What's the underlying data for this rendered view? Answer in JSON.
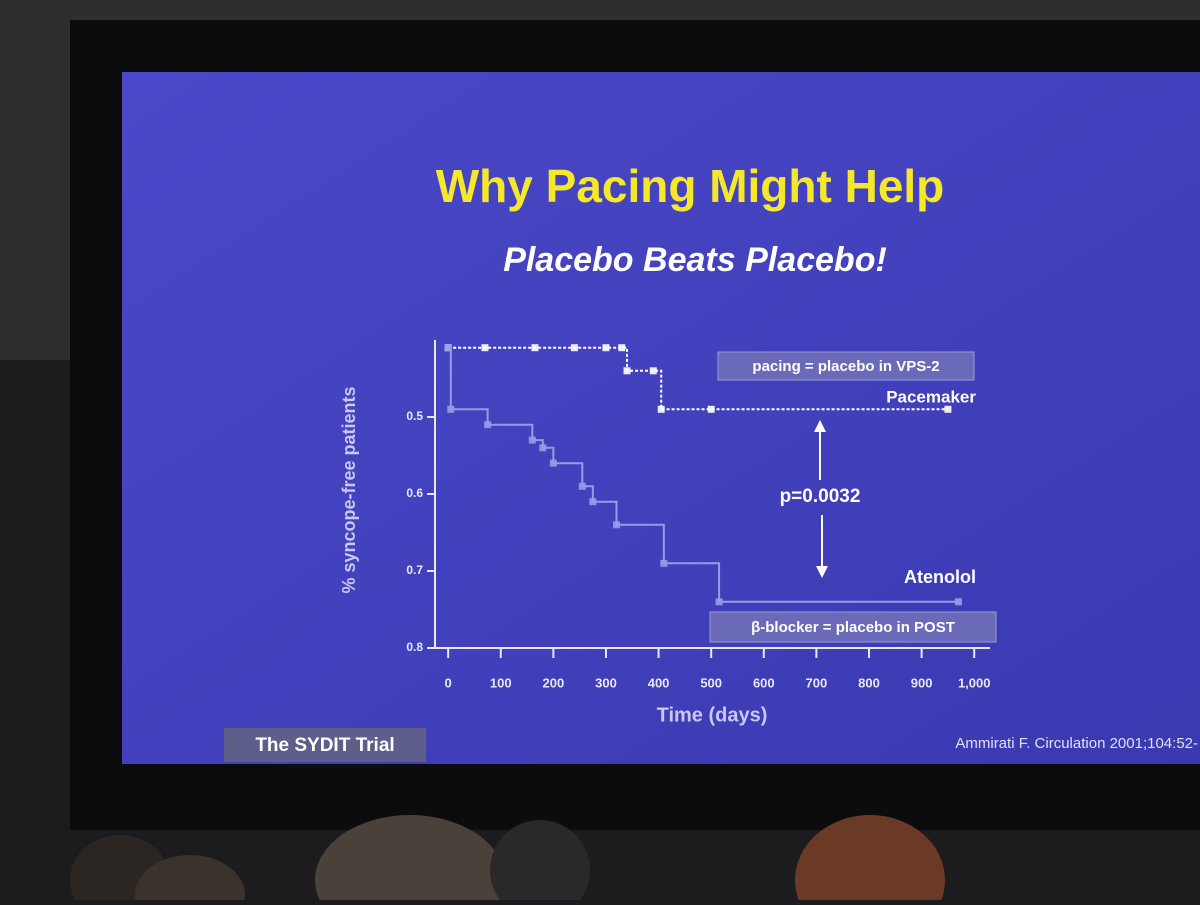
{
  "chart_data": {
    "type": "step",
    "title": "Why Pacing Might Help",
    "subtitle": "Placebo Beats Placebo!",
    "x_label": "Time (days)",
    "y_label": "% syncope-free patients",
    "xlim": [
      -25,
      1030
    ],
    "ylim": [
      0.8,
      0.4
    ],
    "xticks": [
      0,
      100,
      200,
      300,
      400,
      500,
      600,
      700,
      800,
      900,
      {
        "value": 1000,
        "label": "1,000"
      }
    ],
    "yticks": [
      0.5,
      0.6,
      0.7,
      0.8
    ],
    "series": [
      {
        "name": "Pacemaker",
        "color": "#ffffff",
        "x": [
          0,
          70,
          165,
          240,
          300,
          330,
          340,
          390,
          405,
          500,
          950
        ],
        "values": [
          0.41,
          0.41,
          0.41,
          0.41,
          0.41,
          0.41,
          0.44,
          0.44,
          0.49,
          0.49,
          0.49
        ]
      },
      {
        "name": "Atenolol",
        "color": "#9a9ae6",
        "x": [
          0,
          5,
          75,
          160,
          180,
          200,
          255,
          275,
          320,
          410,
          515,
          970
        ],
        "values": [
          0.41,
          0.49,
          0.51,
          0.53,
          0.54,
          0.56,
          0.59,
          0.61,
          0.64,
          0.69,
          0.74,
          0.74
        ]
      }
    ],
    "annotations": [
      "pacing = placebo in VPS-2",
      "p=0.0032",
      "β-blocker = placebo in POST"
    ],
    "footnote": "The SYDIT Trial",
    "citation": "Ammirati F. Circulation 2001;104:52-"
  }
}
